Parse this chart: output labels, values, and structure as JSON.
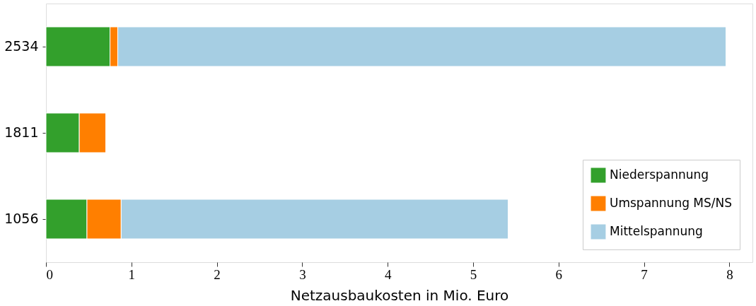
{
  "chart_data": {
    "type": "bar",
    "orientation": "horizontal",
    "stacked": true,
    "categories": [
      "2534",
      "1811",
      "1056"
    ],
    "series": [
      {
        "name": "Niederspannung",
        "color": "#33a02c",
        "values": [
          0.75,
          0.39,
          0.48
        ]
      },
      {
        "name": "Umspannung MS/NS",
        "color": "#ff7f00",
        "values": [
          0.09,
          0.31,
          0.4
        ]
      },
      {
        "name": "Mittelspannung",
        "color": "#a6cee3",
        "values": [
          7.12,
          null,
          4.53
        ]
      }
    ],
    "xlabel": "Netzausbaukosten in Mio. Euro",
    "xlim": [
      0,
      8.27
    ],
    "xticks": [
      0,
      1,
      2,
      3,
      4,
      5,
      6,
      7,
      8
    ],
    "grid": false,
    "legend": "bottom right"
  }
}
